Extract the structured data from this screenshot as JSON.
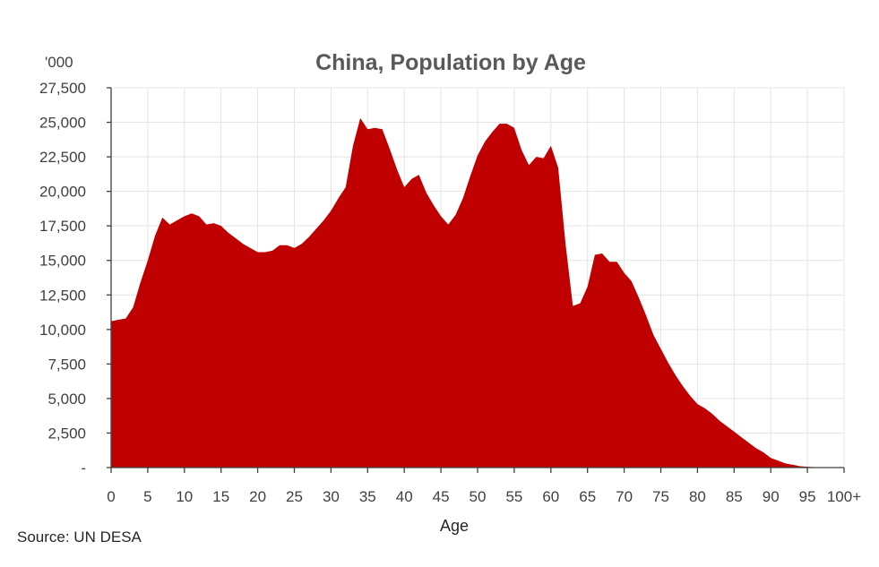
{
  "chart_data": {
    "type": "area",
    "title": "China, Population by Age",
    "unit_label": "'000",
    "xlabel": "Age",
    "ylabel": "",
    "source": "Source: UN DESA",
    "color": "#c00000",
    "grid": true,
    "legend": "none",
    "xlim": [
      0,
      100
    ],
    "ylim": [
      0,
      27500
    ],
    "x_ticks": [
      0,
      5,
      10,
      15,
      20,
      25,
      30,
      35,
      40,
      45,
      50,
      55,
      60,
      65,
      70,
      75,
      80,
      85,
      90,
      95,
      100
    ],
    "x_tick_labels": [
      "0",
      "5",
      "10",
      "15",
      "20",
      "25",
      "30",
      "35",
      "40",
      "45",
      "50",
      "55",
      "60",
      "65",
      "70",
      "75",
      "80",
      "85",
      "90",
      "95",
      "100+"
    ],
    "y_ticks": [
      0,
      2500,
      5000,
      7500,
      10000,
      12500,
      15000,
      17500,
      20000,
      22500,
      25000,
      27500
    ],
    "y_tick_labels": [
      "-",
      "2,500",
      "5,000",
      "7,500",
      "10,000",
      "12,500",
      "15,000",
      "17,500",
      "20,000",
      "22,500",
      "25,000",
      "27,500"
    ],
    "series": [
      {
        "x": [
          0,
          1,
          2,
          3,
          4,
          5,
          6,
          7,
          8,
          9,
          10,
          11,
          12,
          13,
          14,
          15,
          16,
          17,
          18,
          19,
          20,
          21,
          22,
          23,
          24,
          25,
          26,
          27,
          28,
          29,
          30,
          31,
          32,
          33,
          34,
          35,
          36,
          37,
          38,
          39,
          40,
          41,
          42,
          43,
          44,
          45,
          46,
          47,
          48,
          49,
          50,
          51,
          52,
          53,
          54,
          55,
          56,
          57,
          58,
          59,
          60,
          61,
          62,
          63,
          64,
          65,
          66,
          67,
          68,
          69,
          70,
          71,
          72,
          73,
          74,
          75,
          76,
          77,
          78,
          79,
          80,
          81,
          82,
          83,
          84,
          85,
          86,
          87,
          88,
          89,
          90,
          91,
          92,
          93,
          94,
          95,
          96,
          97,
          98,
          99,
          100
        ],
        "values": [
          10600,
          10700,
          10800,
          11600,
          13400,
          15000,
          16800,
          18100,
          17600,
          17900,
          18200,
          18400,
          18200,
          17600,
          17700,
          17500,
          17000,
          16600,
          16200,
          15900,
          15600,
          15600,
          15700,
          16100,
          16100,
          15900,
          16200,
          16700,
          17300,
          17900,
          18600,
          19500,
          20300,
          23300,
          25300,
          24500,
          24600,
          24500,
          23100,
          21600,
          20300,
          20900,
          21200,
          19900,
          19000,
          18200,
          17600,
          18300,
          19500,
          21100,
          22600,
          23600,
          24300,
          24900,
          24900,
          24600,
          23000,
          21900,
          22500,
          22400,
          23300,
          21700,
          16200,
          11700,
          11900,
          13100,
          15400,
          15500,
          14900,
          14900,
          14100,
          13500,
          12300,
          11000,
          9600,
          8600,
          7600,
          6700,
          5900,
          5200,
          4600,
          4300,
          3900,
          3400,
          3000,
          2600,
          2200,
          1800,
          1400,
          1100,
          700,
          500,
          300,
          200,
          100,
          60,
          30,
          20,
          10,
          5,
          0
        ]
      }
    ]
  }
}
